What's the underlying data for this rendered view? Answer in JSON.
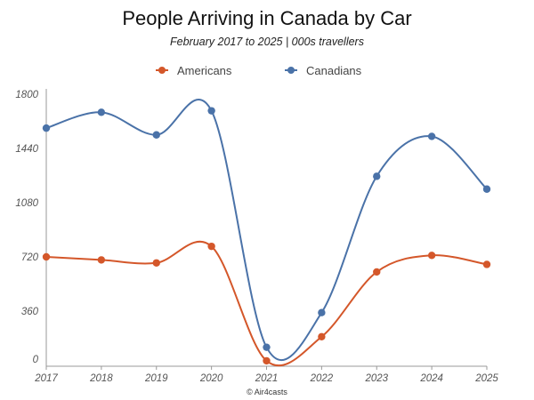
{
  "chart_data": {
    "type": "line",
    "title": "People Arriving in Canada by Car",
    "subtitle": "February 2017 to 2025   |   000s travellers",
    "x": [
      "2017",
      "2018",
      "2019",
      "2020",
      "2021",
      "2022",
      "2023",
      "2024",
      "2025"
    ],
    "series": [
      {
        "name": "Americans",
        "color": "#d4572a",
        "values": [
          720,
          700,
          680,
          790,
          30,
          190,
          620,
          730,
          670
        ]
      },
      {
        "name": "Canadians",
        "color": "#4a72a8",
        "values": [
          1575,
          1680,
          1530,
          1690,
          120,
          350,
          1255,
          1520,
          1170
        ]
      }
    ],
    "yticks": [
      0,
      360,
      720,
      1080,
      1440,
      1800
    ],
    "ylim": [
      0,
      1800
    ],
    "grid": false,
    "smooth": true,
    "legend": "top-center",
    "credit": "© Air4casts"
  }
}
